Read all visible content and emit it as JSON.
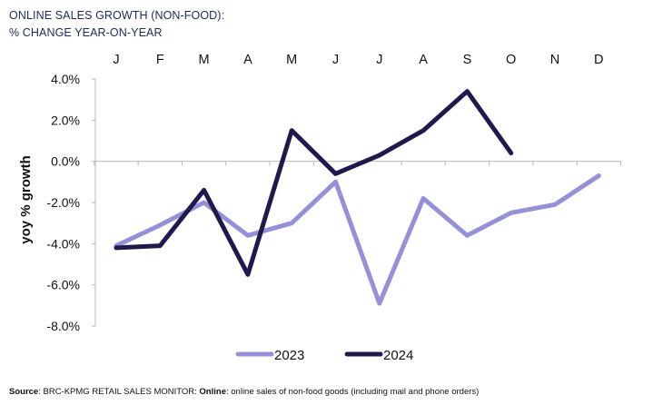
{
  "title": {
    "line1": "ONLINE SALES GROWTH (NON-FOOD):",
    "line2": "% CHANGE YEAR-ON-YEAR"
  },
  "chart_data": {
    "type": "line",
    "categories": [
      "J",
      "F",
      "M",
      "A",
      "M",
      "J",
      "J",
      "A",
      "S",
      "O",
      "N",
      "D"
    ],
    "ylabel": "yoy % growth",
    "ylim": [
      -8.0,
      4.0
    ],
    "yticks": [
      "4.0%",
      "2.0%",
      "0.0%",
      "-2.0%",
      "-4.0%",
      "-6.0%",
      "-8.0%"
    ],
    "ytick_values": [
      4,
      2,
      0,
      -2,
      -4,
      -6,
      -8
    ],
    "x_axis_labels_position": "top",
    "legend_position": "bottom",
    "grid": false,
    "series": [
      {
        "name": "2023",
        "color": "#9591d8",
        "values": [
          -4.1,
          -3.1,
          -2.0,
          -3.6,
          -3.0,
          -1.0,
          -6.9,
          -1.8,
          -3.6,
          -2.5,
          -2.1,
          -0.7
        ]
      },
      {
        "name": "2024",
        "color": "#1e1a4e",
        "values": [
          -4.2,
          -4.1,
          -1.4,
          -5.5,
          1.5,
          -0.6,
          0.3,
          1.5,
          3.4,
          0.4,
          null,
          null
        ]
      }
    ]
  },
  "source": {
    "label": "Source",
    "text1": ": BRC-KPMG RETAIL SALES MONITOR: ",
    "bold": "Online",
    "text2": ": online sales of non-food goods (including mail and phone orders)"
  }
}
